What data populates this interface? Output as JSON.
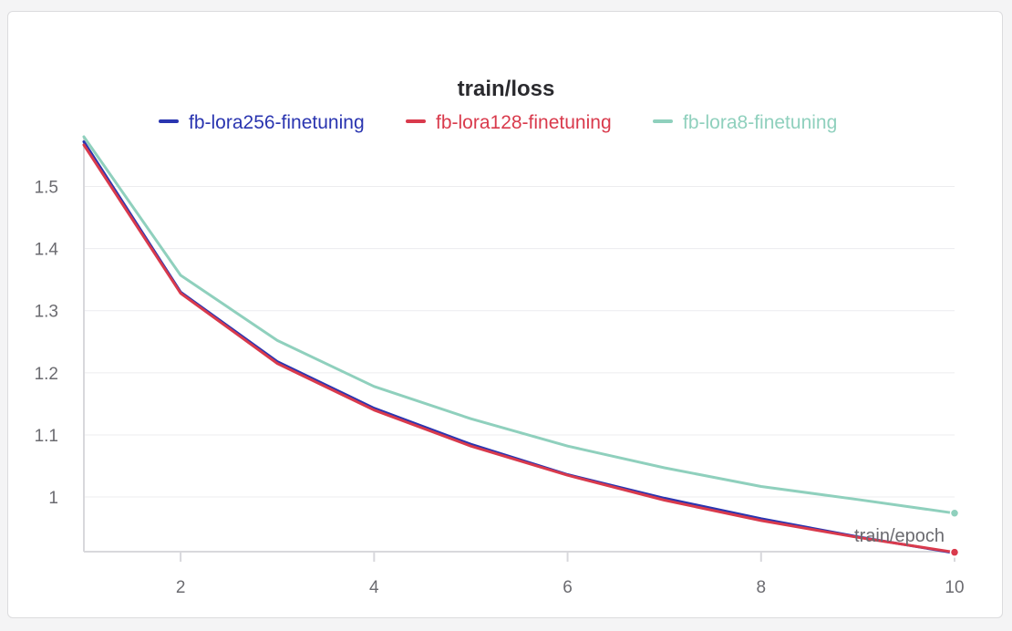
{
  "chart_data": {
    "type": "line",
    "title": "train/loss",
    "xlabel": "train/epoch",
    "ylabel": "",
    "xlim": [
      1,
      10
    ],
    "ylim": [
      0.912,
      1.58
    ],
    "x_ticks": [
      "2",
      "4",
      "6",
      "8",
      "10"
    ],
    "y_ticks": [
      "1.5",
      "1.4",
      "1.3",
      "1.2",
      "1.1",
      "1"
    ],
    "grid": true,
    "legend_position": "top",
    "x": [
      1,
      2,
      3,
      4,
      5,
      6,
      7,
      8,
      9,
      10
    ],
    "series": [
      {
        "name": "fb-lora256-finetuning",
        "color": "#2a35b0",
        "values": [
          1.572,
          1.33,
          1.218,
          1.143,
          1.085,
          1.036,
          0.998,
          0.965,
          0.936,
          0.91
        ]
      },
      {
        "name": "fb-lora128-finetuning",
        "color": "#d93a4c",
        "values": [
          1.567,
          1.328,
          1.215,
          1.14,
          1.082,
          1.035,
          0.995,
          0.962,
          0.935,
          0.911
        ]
      },
      {
        "name": "fb-lora8-finetuning",
        "color": "#8fd0bd",
        "values": [
          1.58,
          1.357,
          1.252,
          1.178,
          1.126,
          1.082,
          1.047,
          1.017,
          0.996,
          0.974
        ]
      }
    ]
  }
}
